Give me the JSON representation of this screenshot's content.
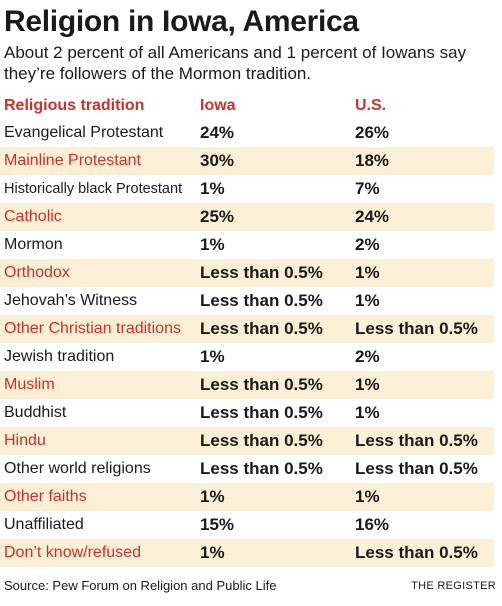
{
  "title": "Religion in Iowa, America",
  "subtitle": "About 2 percent of all Americans and 1 percent of Iowans say they’re followers of the Mormon tradition.",
  "headers": {
    "tradition": "Religious tradition",
    "iowa": "Iowa",
    "us": "U.S."
  },
  "colors": {
    "header_red": "#c8322b",
    "stripe": "#fbefd6",
    "text": "#1a1a1a"
  },
  "chart_data": {
    "type": "table",
    "columns": [
      "Religious tradition",
      "Iowa",
      "U.S."
    ],
    "rows": [
      [
        "Evangelical Protestant",
        "24%",
        "26%"
      ],
      [
        "Mainline Protestant",
        "30%",
        "18%"
      ],
      [
        "Historically black Protestant",
        "1%",
        "7%"
      ],
      [
        "Catholic",
        "25%",
        "24%"
      ],
      [
        "Mormon",
        "1%",
        "2%"
      ],
      [
        "Orthodox",
        "Less than 0.5%",
        "1%"
      ],
      [
        "Jehovah’s Witness",
        "Less than 0.5%",
        "1%"
      ],
      [
        "Other Christian traditions",
        "Less than 0.5%",
        "Less than 0.5%"
      ],
      [
        "Jewish tradition",
        "1%",
        "2%"
      ],
      [
        "Muslim",
        "Less than 0.5%",
        "1%"
      ],
      [
        "Buddhist",
        "Less than 0.5%",
        "1%"
      ],
      [
        "Hindu",
        "Less than 0.5%",
        "Less than 0.5%"
      ],
      [
        "Other world religions",
        "Less than 0.5%",
        "Less than 0.5%"
      ],
      [
        "Other faiths",
        "1%",
        "1%"
      ],
      [
        "Unaffiliated",
        "15%",
        "16%"
      ],
      [
        "Don’t know/refused",
        "1%",
        "Less than 0.5%"
      ]
    ]
  },
  "source": "Source: Pew Forum on Religion and Public Life",
  "credit": "THE REGISTER"
}
